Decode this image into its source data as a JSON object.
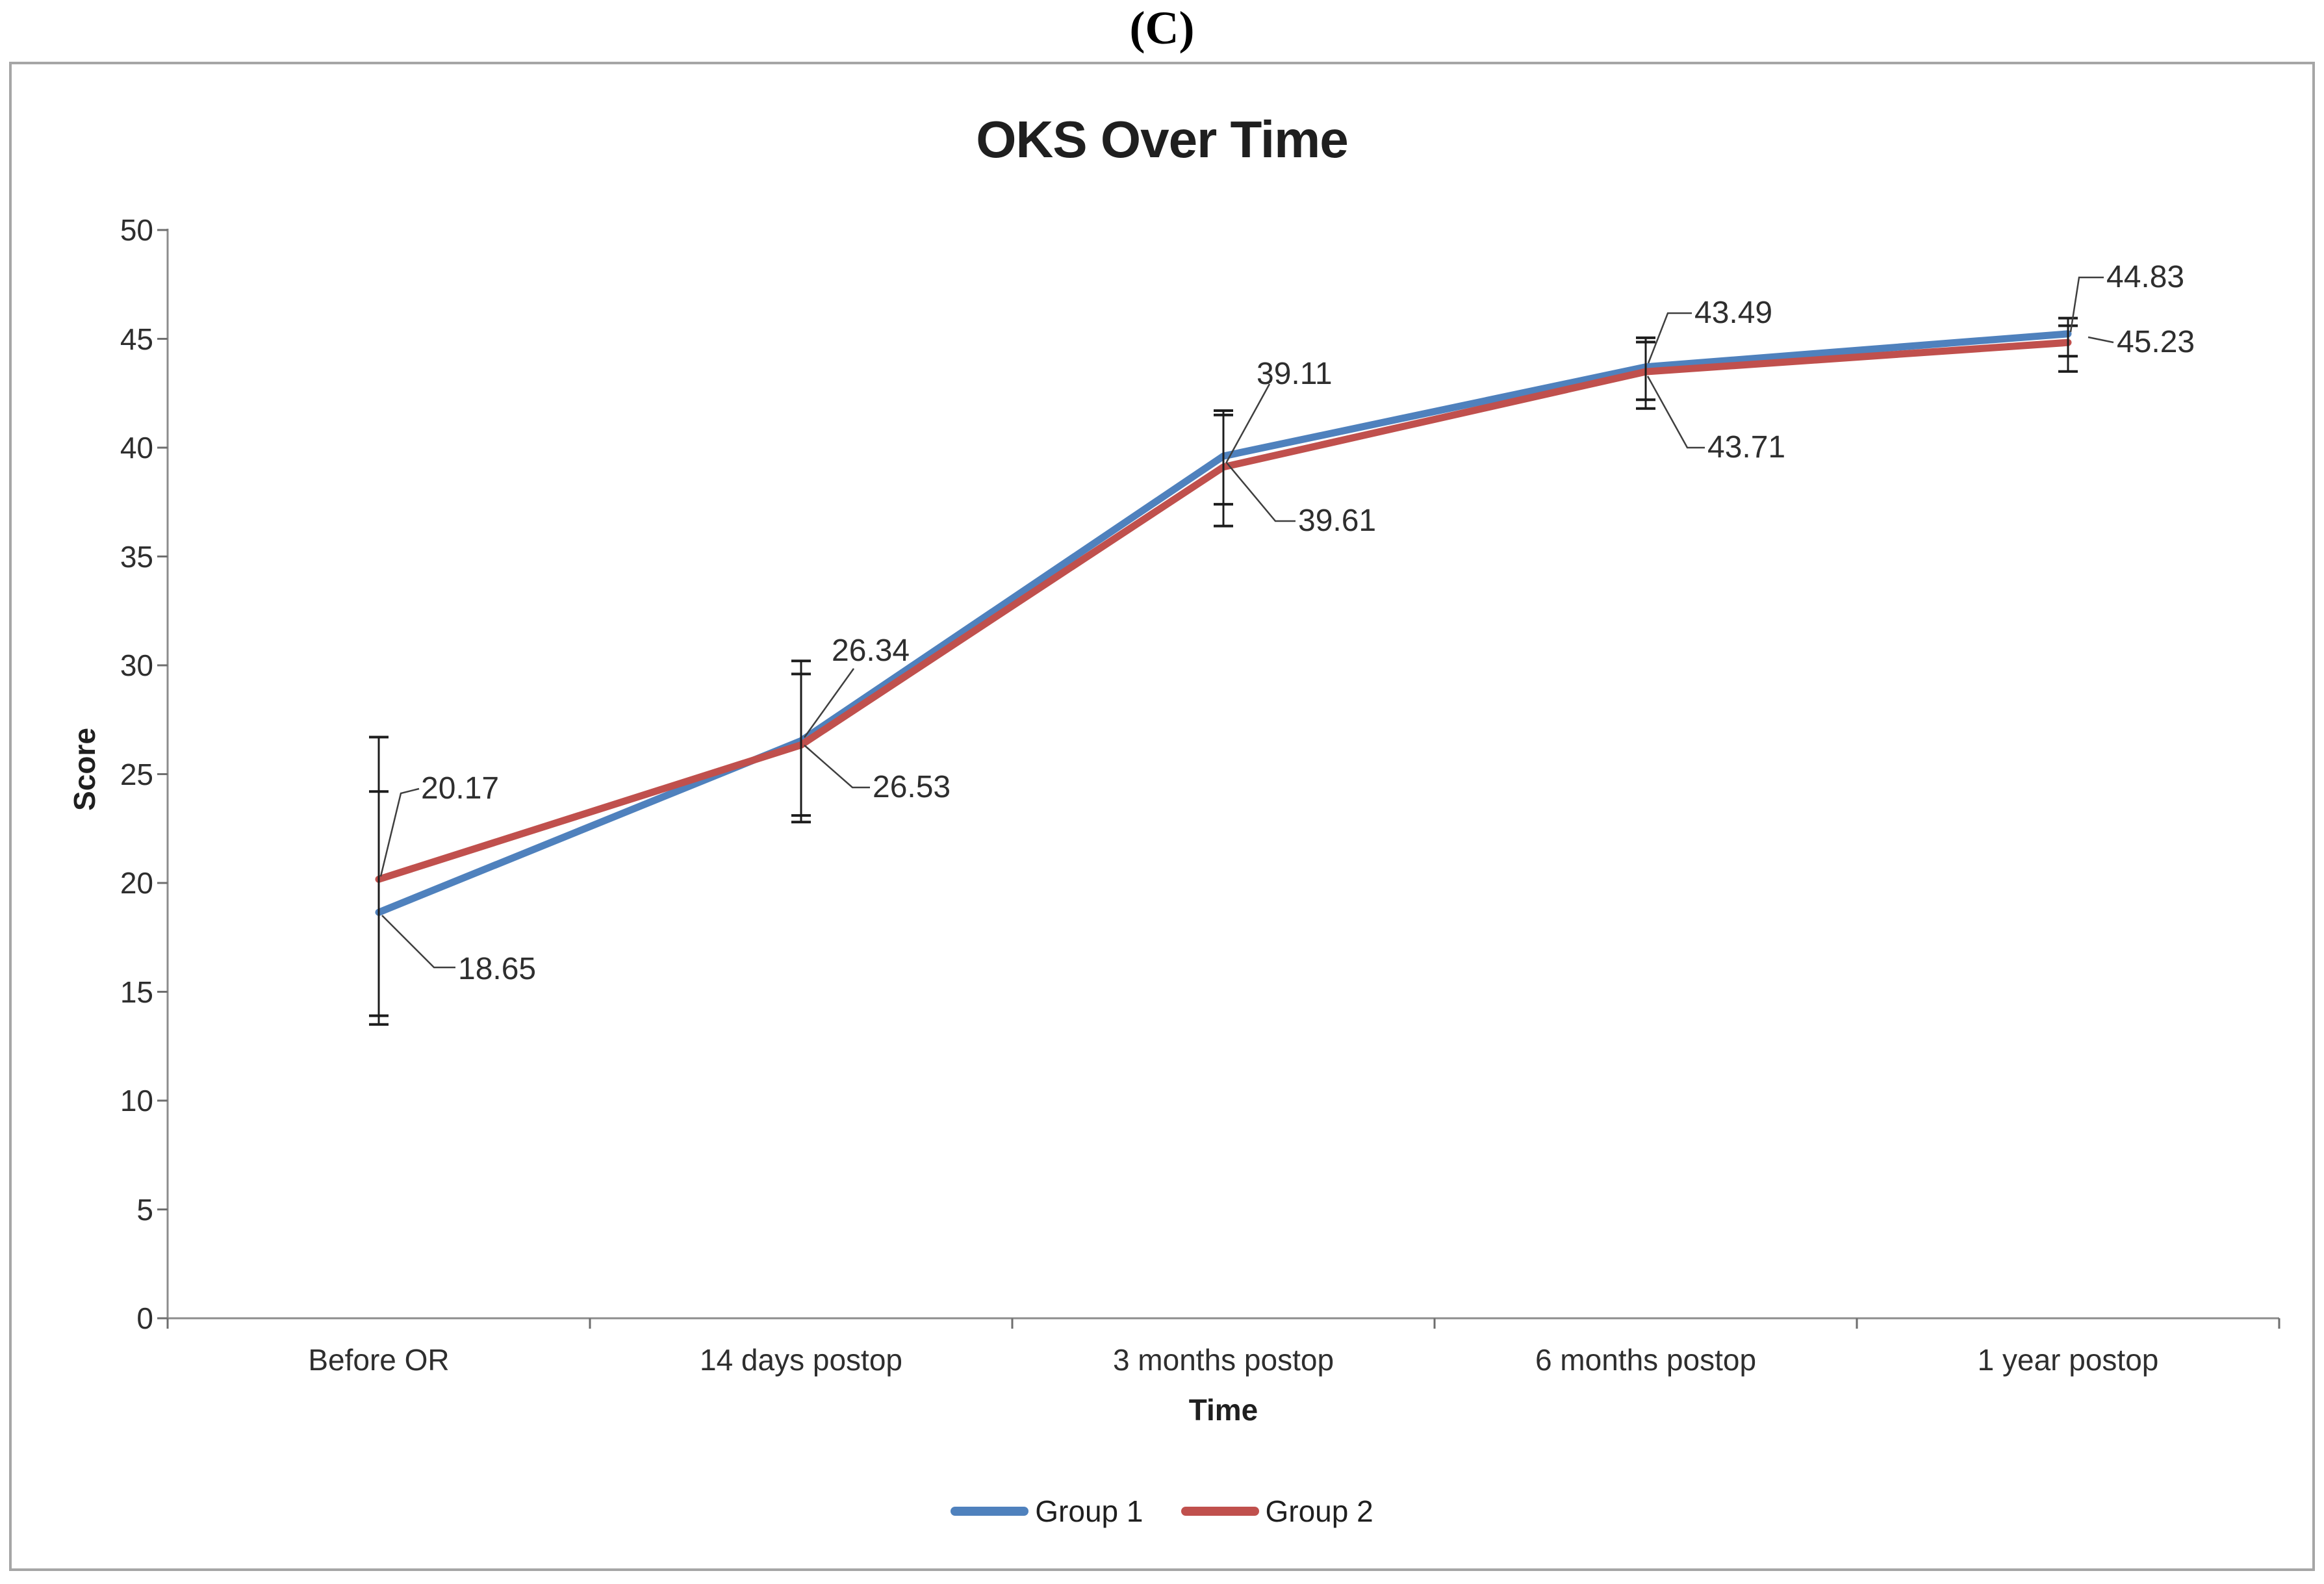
{
  "figure": {
    "panel_label": "(C)"
  },
  "chart_data": {
    "type": "line",
    "title": "OKS Over Time",
    "xlabel": "Time",
    "ylabel": "Score",
    "categories": [
      "Before OR",
      "14 days postop",
      "3 months postop",
      "6 months postop",
      "1 year postop"
    ],
    "ylim": [
      0,
      50
    ],
    "yticks": [
      0,
      5,
      10,
      15,
      20,
      25,
      30,
      35,
      40,
      45,
      50
    ],
    "grid": false,
    "legend_position": "bottom",
    "series": [
      {
        "name": "Group 1",
        "color": "#4F81BD",
        "values": [
          18.65,
          26.53,
          39.61,
          43.71,
          45.23
        ],
        "data_labels": [
          "18.65",
          "26.53",
          "39.61",
          "43.71",
          "45.23"
        ],
        "error_bars": [
          [
            13.5,
            24.2
          ],
          [
            23.1,
            30.2
          ],
          [
            37.4,
            41.7
          ],
          [
            42.2,
            45.05
          ],
          [
            44.2,
            45.95
          ]
        ]
      },
      {
        "name": "Group 2",
        "color": "#C0504D",
        "values": [
          20.17,
          26.34,
          39.11,
          43.49,
          44.83
        ],
        "data_labels": [
          "20.17",
          "26.34",
          "39.11",
          "43.49",
          "44.83"
        ],
        "error_bars": [
          [
            13.9,
            26.7
          ],
          [
            22.8,
            29.6
          ],
          [
            36.4,
            41.5
          ],
          [
            41.8,
            44.85
          ],
          [
            43.5,
            45.6
          ]
        ]
      }
    ]
  },
  "colors": {
    "background": "#ffffff",
    "frame_border": "#a6a6a6",
    "axis": "#8c8c8c",
    "tick": "#6e6e6e",
    "error_bar": "#1c1c1c",
    "leader": "#3f3f3f",
    "label_text": "#2e2e2e",
    "title_text": "#1f1f1f"
  }
}
